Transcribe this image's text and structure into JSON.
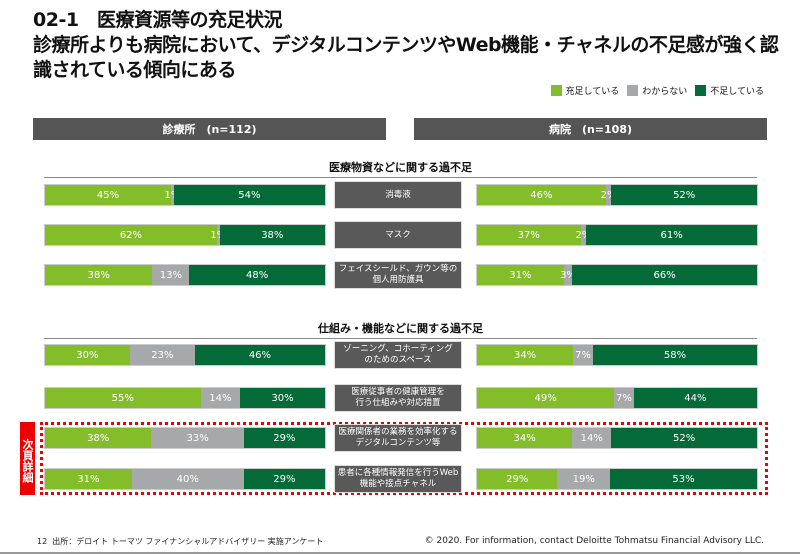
{
  "title": {
    "line1": "02-1　医療資源等の充足状況",
    "line2": "診療所よりも病院において、デジタルコンテンツやWeb機能・チャネルの不足感が強く認",
    "line3": "識されている傾向にある"
  },
  "chart_data": {
    "type": "bar",
    "stacked": true,
    "orientation": "horizontal",
    "legend": [
      "充足している",
      "わからない",
      "不足している"
    ],
    "colors": [
      "#84BD2A",
      "#A7A8AA",
      "#046A38"
    ],
    "groups": [
      {
        "name": "診療所　(n=112)"
      },
      {
        "name": "病院　(n=108)"
      }
    ],
    "sections": [
      {
        "title": "医療物資などに関する過不足",
        "rows": [
          0,
          1,
          2
        ]
      },
      {
        "title": "仕組み・機能などに関する過不足",
        "rows": [
          3,
          4,
          5,
          6
        ]
      }
    ],
    "categories": [
      "消毒液",
      "マスク",
      "フェイスシールド、ガウン等の\n個人用防護具",
      "ゾーニング、コホーティング\nのためのスペース",
      "医療従事者の健康管理を\n行う仕組みや対応措置",
      "医療関係者の業務を効率化する\nデジタルコンテンツ等",
      "患者に各種情報発信を行うWeb\n機能や接点チャネル"
    ],
    "series_by_group": [
      [
        [
          45,
          1,
          54
        ],
        [
          62,
          1,
          38
        ],
        [
          38,
          13,
          48
        ],
        [
          30,
          23,
          46
        ],
        [
          55,
          14,
          30
        ],
        [
          38,
          33,
          29
        ],
        [
          31,
          40,
          29
        ]
      ],
      [
        [
          46,
          2,
          52
        ],
        [
          37,
          2,
          61
        ],
        [
          31,
          3,
          66
        ],
        [
          34,
          7,
          58
        ],
        [
          49,
          7,
          44
        ],
        [
          34,
          14,
          52
        ],
        [
          29,
          19,
          53
        ]
      ]
    ],
    "unit": "%"
  },
  "tag": "次頁詳細",
  "footer": {
    "page": "12",
    "source": "出所：デロイト トーマツ ファイナンシャルアドバイザリー 実施アンケート",
    "copyright": "© 2020. For information, contact Deloitte Tohmatsu Financial Advisory LLC."
  }
}
